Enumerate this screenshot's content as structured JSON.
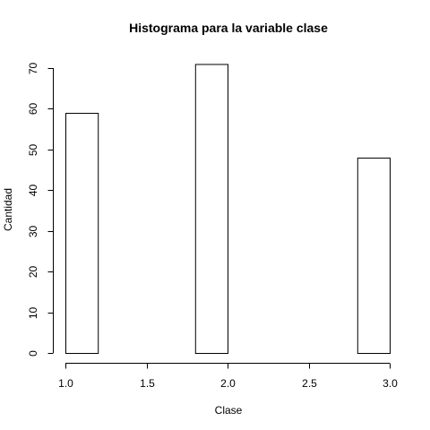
{
  "chart_data": {
    "type": "bar",
    "subtype": "histogram",
    "title": "Histograma para la variable clase",
    "xlabel": "Clase",
    "ylabel": "Cantidad",
    "xlim": [
      1.0,
      3.0
    ],
    "ylim": [
      0,
      70
    ],
    "x_ticks": [
      "1.0",
      "1.5",
      "2.0",
      "2.5",
      "3.0"
    ],
    "y_ticks": [
      "0",
      "10",
      "20",
      "30",
      "40",
      "50",
      "60",
      "70"
    ],
    "bin_edges": [
      1.0,
      1.2,
      1.4,
      1.6,
      1.8,
      2.0,
      2.2,
      2.4,
      2.6,
      2.8,
      3.0
    ],
    "values": [
      59,
      0,
      0,
      0,
      71,
      0,
      0,
      0,
      0,
      48
    ],
    "grid": false,
    "bar_fill": "#ffffff",
    "bar_stroke": "#000000"
  }
}
